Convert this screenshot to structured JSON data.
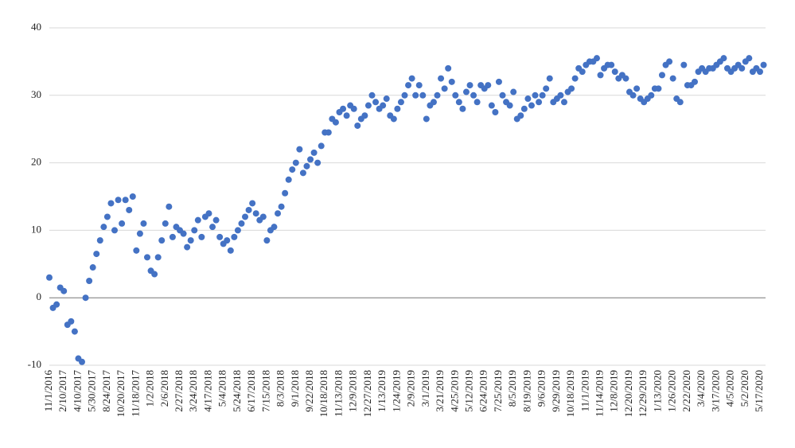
{
  "chart_data": {
    "type": "scatter",
    "color": "#4472c4",
    "grid": true,
    "ylim": [
      -10,
      40
    ],
    "yticks": [
      -10,
      0,
      10,
      20,
      30,
      40
    ],
    "categories": [
      "11/1/2016",
      null,
      null,
      null,
      "2/10/2017",
      null,
      null,
      null,
      "4/10/2017",
      null,
      null,
      null,
      "5/30/2017",
      null,
      null,
      null,
      "8/24/2017",
      null,
      null,
      null,
      "10/20/2017",
      null,
      null,
      null,
      "11/18/2017",
      null,
      null,
      null,
      "1/2/2018",
      null,
      null,
      null,
      "2/6/2018",
      null,
      null,
      null,
      "2/27/2018",
      null,
      null,
      null,
      "3/24/2018",
      null,
      null,
      null,
      "4/17/2018",
      null,
      null,
      null,
      "5/4/2018",
      null,
      null,
      null,
      "5/24/2018",
      null,
      null,
      null,
      "6/17/2018",
      null,
      null,
      null,
      "7/15/2018",
      null,
      null,
      null,
      "8/3/2018",
      null,
      null,
      null,
      "9/1/2018",
      null,
      null,
      null,
      "9/22/2018",
      null,
      null,
      null,
      "10/18/2018",
      null,
      null,
      null,
      "11/13/2018",
      null,
      null,
      null,
      "12/9/2018",
      null,
      null,
      null,
      "12/27/2018",
      null,
      null,
      null,
      "1/13/2019",
      null,
      null,
      null,
      "1/24/2019",
      null,
      null,
      null,
      "2/9/2019",
      null,
      null,
      null,
      "3/1/2019",
      null,
      null,
      null,
      "3/21/2019",
      null,
      null,
      null,
      "4/25/2019",
      null,
      null,
      null,
      "5/12/2019",
      null,
      null,
      null,
      "6/24/2019",
      null,
      null,
      null,
      "7/25/2019",
      null,
      null,
      null,
      "8/5/2019",
      null,
      null,
      null,
      "8/19/2019",
      null,
      null,
      null,
      "9/6/2019",
      null,
      null,
      null,
      "9/29/2019",
      null,
      null,
      null,
      "10/18/2019",
      null,
      null,
      null,
      "11/1/2019",
      null,
      null,
      null,
      "11/14/2019",
      null,
      null,
      null,
      "12/8/2019",
      null,
      null,
      null,
      "12/20/2019",
      null,
      null,
      null,
      "12/29/2019",
      null,
      null,
      null,
      "1/13/2020",
      null,
      null,
      null,
      "1/26/2020",
      null,
      null,
      null,
      "2/22/2020",
      null,
      null,
      null,
      "3/4/2020",
      null,
      null,
      null,
      "3/17/2020",
      null,
      null,
      null,
      "4/5/2020",
      null,
      null,
      null,
      "5/2/2020",
      null,
      null,
      null,
      "5/17/2020",
      null
    ],
    "values": [
      3,
      -1.5,
      -1,
      1.5,
      1,
      -4,
      -3.5,
      -5,
      -9,
      -9.5,
      0,
      2.5,
      4.5,
      6.5,
      8.5,
      10.5,
      12,
      14,
      10,
      14.5,
      11,
      14.5,
      13,
      15,
      7,
      9.5,
      11,
      6,
      4,
      3.5,
      6,
      8.5,
      11,
      13.5,
      9,
      10.5,
      10,
      9.5,
      7.5,
      8.5,
      10,
      11.5,
      9,
      12,
      12.5,
      10.5,
      11.5,
      9,
      8,
      8.5,
      7,
      9,
      10,
      11,
      12,
      13,
      14,
      12.5,
      11.5,
      12,
      8.5,
      10,
      10.5,
      12.5,
      13.5,
      15.5,
      17.5,
      19,
      20,
      22,
      18.5,
      19.5,
      20.5,
      21.5,
      20,
      22.5,
      24.5,
      24.5,
      26.5,
      26,
      27.5,
      28,
      27,
      28.5,
      28,
      25.5,
      26.5,
      27,
      28.5,
      30,
      29,
      28,
      28.5,
      29.5,
      27,
      26.5,
      28,
      29,
      30,
      31.5,
      32.5,
      30,
      31.5,
      30,
      26.5,
      28.5,
      29,
      30,
      32.5,
      31,
      34,
      32,
      30,
      29,
      28,
      30.5,
      31.5,
      30,
      29,
      31.5,
      31,
      31.5,
      28.5,
      27.5,
      32,
      30,
      29,
      28.5,
      30.5,
      26.5,
      27,
      28,
      29.5,
      28.5,
      30,
      29,
      30,
      31,
      32.5,
      29,
      29.5,
      30,
      29,
      30.5,
      31,
      32.5,
      34,
      33.5,
      34.5,
      35,
      35,
      35.5,
      33,
      34,
      34.5,
      34.5,
      33.5,
      32.5,
      33,
      32.5,
      30.5,
      30,
      31,
      29.5,
      29,
      29.5,
      30,
      31,
      31,
      33,
      34.5,
      35,
      32.5,
      29.5,
      29,
      34.5,
      31.5,
      31.5,
      32,
      33.5,
      34,
      33.5,
      34,
      34,
      34.5,
      35,
      35.5,
      34,
      33.5,
      34,
      34.5,
      34,
      35,
      35.5,
      33.5,
      34,
      33.5,
      34.5
    ]
  }
}
